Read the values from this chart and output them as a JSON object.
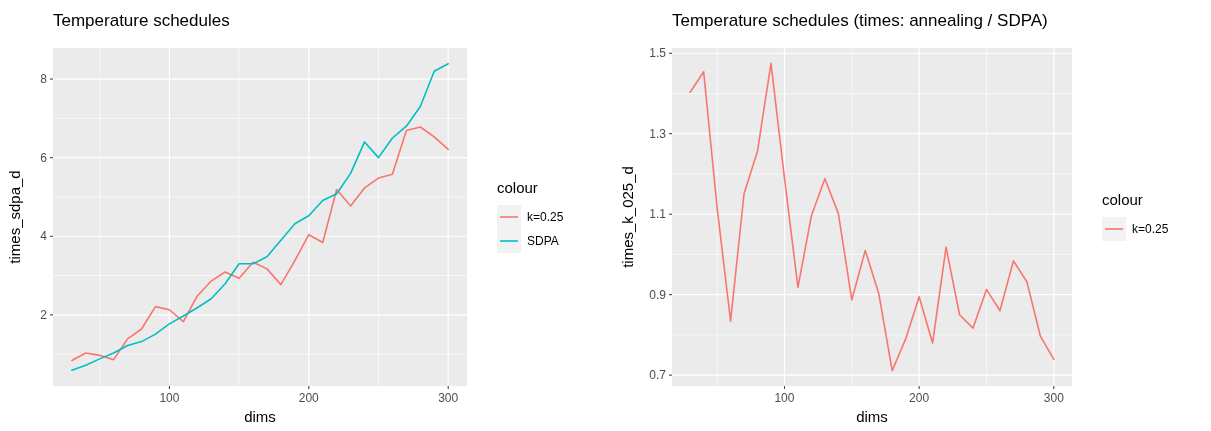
{
  "chart_data": [
    {
      "type": "line",
      "title": "Temperature schedules",
      "xlabel": "dims",
      "ylabel": "times_sdpa_d",
      "legend_title": "colour",
      "legend": "right",
      "grid": true,
      "x": [
        30,
        40,
        50,
        60,
        70,
        80,
        90,
        100,
        110,
        120,
        130,
        140,
        150,
        160,
        170,
        180,
        190,
        200,
        210,
        220,
        230,
        240,
        250,
        260,
        270,
        280,
        290,
        300
      ],
      "xlim": [
        16.5,
        313.5
      ],
      "xticks": [
        100,
        200,
        300
      ],
      "ylim": [
        0.19,
        8.79
      ],
      "yticks": [
        2,
        4,
        6,
        8
      ],
      "series": [
        {
          "name": "k=0.25",
          "color": "#f8766d",
          "values": [
            0.84,
            1.03,
            0.97,
            0.86,
            1.39,
            1.64,
            2.21,
            2.13,
            1.83,
            2.48,
            2.86,
            3.09,
            2.93,
            3.34,
            3.17,
            2.77,
            3.38,
            4.04,
            3.84,
            5.19,
            4.77,
            5.23,
            5.48,
            5.58,
            6.69,
            6.78,
            6.53,
            6.21
          ]
        },
        {
          "name": "SDPA",
          "color": "#00bfc4",
          "values": [
            0.59,
            0.72,
            0.88,
            1.03,
            1.22,
            1.32,
            1.51,
            1.77,
            1.97,
            2.18,
            2.41,
            2.79,
            3.3,
            3.3,
            3.48,
            3.9,
            4.32,
            4.52,
            4.91,
            5.08,
            5.6,
            6.4,
            6.0,
            6.5,
            6.8,
            7.3,
            8.2,
            8.39
          ]
        }
      ]
    },
    {
      "type": "line",
      "title": "Temperature schedules (times: annealing / SDPA)",
      "xlabel": "dims",
      "ylabel": "times_k_025_d",
      "legend_title": "colour",
      "legend": "right",
      "grid": true,
      "x": [
        30,
        40,
        50,
        60,
        70,
        80,
        90,
        100,
        110,
        120,
        130,
        140,
        150,
        160,
        170,
        180,
        190,
        200,
        210,
        220,
        230,
        240,
        250,
        260,
        270,
        280,
        290,
        300
      ],
      "xlim": [
        16.5,
        313.5
      ],
      "xticks": [
        100,
        200,
        300
      ],
      "ylim": [
        0.673,
        1.513
      ],
      "yticks": [
        0.7,
        0.9,
        1.1,
        1.3,
        1.5
      ],
      "series": [
        {
          "name": "k=0.25",
          "color": "#f8766d",
          "values": [
            1.403,
            1.454,
            1.116,
            0.834,
            1.151,
            1.257,
            1.475,
            1.19,
            0.918,
            1.096,
            1.188,
            1.102,
            0.887,
            1.01,
            0.903,
            0.711,
            0.79,
            0.895,
            0.78,
            1.018,
            0.85,
            0.817,
            0.913,
            0.86,
            0.984,
            0.932,
            0.797,
            0.739
          ]
        }
      ]
    }
  ]
}
